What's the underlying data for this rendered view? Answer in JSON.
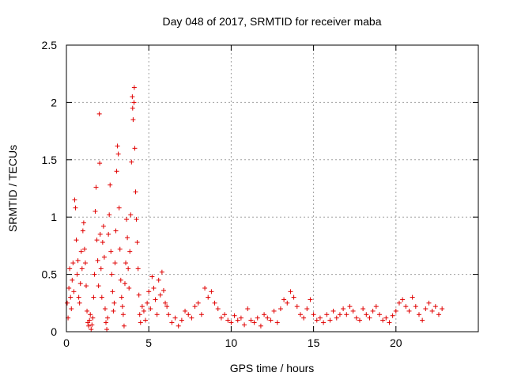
{
  "chart_data": {
    "type": "scatter",
    "title": "Day 048 of 2017, SRMTID for receiver maba",
    "xlabel": "GPS time / hours",
    "ylabel": "SRMTID / TECUs",
    "xlim": [
      0,
      25
    ],
    "ylim": [
      0,
      2.5
    ],
    "xticks": [
      0,
      5,
      10,
      15,
      20
    ],
    "xtick_labels": [
      "0",
      "5",
      "10",
      "15",
      "20"
    ],
    "yticks": [
      0,
      0.5,
      1,
      1.5,
      2,
      2.5
    ],
    "ytick_labels": [
      "0",
      "0.5",
      "1",
      "1.5",
      "2",
      "2.5"
    ],
    "grid": true,
    "marker": "+",
    "series_color": "#e00000",
    "series": [
      {
        "name": "SRMTID",
        "points": [
          [
            0.05,
            0.25
          ],
          [
            0.1,
            0.12
          ],
          [
            0.15,
            0.38
          ],
          [
            0.2,
            0.55
          ],
          [
            0.25,
            0.3
          ],
          [
            0.3,
            0.2
          ],
          [
            0.35,
            0.45
          ],
          [
            0.4,
            0.6
          ],
          [
            0.45,
            0.35
          ],
          [
            0.5,
            1.15
          ],
          [
            0.55,
            1.08
          ],
          [
            0.6,
            0.8
          ],
          [
            0.65,
            0.5
          ],
          [
            0.7,
            0.62
          ],
          [
            0.75,
            0.3
          ],
          [
            0.8,
            0.25
          ],
          [
            0.85,
            0.42
          ],
          [
            0.9,
            0.7
          ],
          [
            0.95,
            0.55
          ],
          [
            1.0,
            0.88
          ],
          [
            1.05,
            0.95
          ],
          [
            1.1,
            0.72
          ],
          [
            1.15,
            0.6
          ],
          [
            1.2,
            0.4
          ],
          [
            1.25,
            0.18
          ],
          [
            1.3,
            0.08
          ],
          [
            1.35,
            0.05
          ],
          [
            1.4,
            0.1
          ],
          [
            1.45,
            0.15
          ],
          [
            1.5,
            0.02
          ],
          [
            1.55,
            0.06
          ],
          [
            1.6,
            0.12
          ],
          [
            1.65,
            0.3
          ],
          [
            1.7,
            0.5
          ],
          [
            1.75,
            1.05
          ],
          [
            1.8,
            1.26
          ],
          [
            1.85,
            0.8
          ],
          [
            1.9,
            0.62
          ],
          [
            1.95,
            0.4
          ],
          [
            2.0,
            1.9
          ],
          [
            2.02,
            1.47
          ],
          [
            2.05,
            0.85
          ],
          [
            2.1,
            0.55
          ],
          [
            2.15,
            0.3
          ],
          [
            2.2,
            0.78
          ],
          [
            2.25,
            0.92
          ],
          [
            2.3,
            0.65
          ],
          [
            2.35,
            0.2
          ],
          [
            2.4,
            0.08
          ],
          [
            2.45,
            0.02
          ],
          [
            2.5,
            0.12
          ],
          [
            2.55,
            0.85
          ],
          [
            2.6,
            1.02
          ],
          [
            2.65,
            1.28
          ],
          [
            2.7,
            0.7
          ],
          [
            2.75,
            0.5
          ],
          [
            2.8,
            0.35
          ],
          [
            2.85,
            0.18
          ],
          [
            2.9,
            0.25
          ],
          [
            2.95,
            0.6
          ],
          [
            3.0,
            0.88
          ],
          [
            3.05,
            1.4
          ],
          [
            3.1,
            1.62
          ],
          [
            3.15,
            1.55
          ],
          [
            3.2,
            1.08
          ],
          [
            3.25,
            0.72
          ],
          [
            3.3,
            0.45
          ],
          [
            3.35,
            0.3
          ],
          [
            3.4,
            0.22
          ],
          [
            3.45,
            0.15
          ],
          [
            3.5,
            0.05
          ],
          [
            3.55,
            0.42
          ],
          [
            3.6,
            0.6
          ],
          [
            3.65,
            0.98
          ],
          [
            3.7,
            0.82
          ],
          [
            3.75,
            0.55
          ],
          [
            3.8,
            0.38
          ],
          [
            3.85,
            0.7
          ],
          [
            3.9,
            1.02
          ],
          [
            3.95,
            1.48
          ],
          [
            4.0,
            2.05
          ],
          [
            4.02,
            1.95
          ],
          [
            4.05,
            1.85
          ],
          [
            4.1,
            2.0
          ],
          [
            4.12,
            2.13
          ],
          [
            4.15,
            1.6
          ],
          [
            4.2,
            1.22
          ],
          [
            4.25,
            0.98
          ],
          [
            4.3,
            0.78
          ],
          [
            4.35,
            0.55
          ],
          [
            4.4,
            0.32
          ],
          [
            4.45,
            0.15
          ],
          [
            4.5,
            0.08
          ],
          [
            4.6,
            0.22
          ],
          [
            4.7,
            0.18
          ],
          [
            4.8,
            0.1
          ],
          [
            4.9,
            0.25
          ],
          [
            5.0,
            0.35
          ],
          [
            5.1,
            0.2
          ],
          [
            5.2,
            0.48
          ],
          [
            5.3,
            0.38
          ],
          [
            5.4,
            0.28
          ],
          [
            5.5,
            0.15
          ],
          [
            5.6,
            0.45
          ],
          [
            5.7,
            0.32
          ],
          [
            5.8,
            0.52
          ],
          [
            5.9,
            0.36
          ],
          [
            6.0,
            0.25
          ],
          [
            6.1,
            0.22
          ],
          [
            6.2,
            0.15
          ],
          [
            6.4,
            0.08
          ],
          [
            6.6,
            0.12
          ],
          [
            6.8,
            0.05
          ],
          [
            7.0,
            0.1
          ],
          [
            7.2,
            0.18
          ],
          [
            7.4,
            0.15
          ],
          [
            7.6,
            0.12
          ],
          [
            7.8,
            0.22
          ],
          [
            8.0,
            0.25
          ],
          [
            8.2,
            0.15
          ],
          [
            8.4,
            0.38
          ],
          [
            8.6,
            0.3
          ],
          [
            8.8,
            0.35
          ],
          [
            9.0,
            0.25
          ],
          [
            9.2,
            0.2
          ],
          [
            9.4,
            0.12
          ],
          [
            9.6,
            0.15
          ],
          [
            9.8,
            0.1
          ],
          [
            10.0,
            0.08
          ],
          [
            10.2,
            0.14
          ],
          [
            10.4,
            0.1
          ],
          [
            10.6,
            0.12
          ],
          [
            10.8,
            0.06
          ],
          [
            11.0,
            0.2
          ],
          [
            11.2,
            0.1
          ],
          [
            11.4,
            0.08
          ],
          [
            11.6,
            0.12
          ],
          [
            11.8,
            0.05
          ],
          [
            12.0,
            0.15
          ],
          [
            12.2,
            0.12
          ],
          [
            12.4,
            0.1
          ],
          [
            12.6,
            0.18
          ],
          [
            12.8,
            0.08
          ],
          [
            13.0,
            0.2
          ],
          [
            13.2,
            0.28
          ],
          [
            13.4,
            0.25
          ],
          [
            13.6,
            0.35
          ],
          [
            13.8,
            0.3
          ],
          [
            14.0,
            0.22
          ],
          [
            14.2,
            0.15
          ],
          [
            14.4,
            0.12
          ],
          [
            14.6,
            0.2
          ],
          [
            14.8,
            0.28
          ],
          [
            15.0,
            0.15
          ],
          [
            15.2,
            0.1
          ],
          [
            15.4,
            0.12
          ],
          [
            15.6,
            0.08
          ],
          [
            15.8,
            0.15
          ],
          [
            16.0,
            0.1
          ],
          [
            16.2,
            0.18
          ],
          [
            16.4,
            0.12
          ],
          [
            16.6,
            0.15
          ],
          [
            16.8,
            0.2
          ],
          [
            17.0,
            0.15
          ],
          [
            17.2,
            0.22
          ],
          [
            17.4,
            0.18
          ],
          [
            17.6,
            0.12
          ],
          [
            17.8,
            0.1
          ],
          [
            18.0,
            0.2
          ],
          [
            18.2,
            0.15
          ],
          [
            18.4,
            0.12
          ],
          [
            18.6,
            0.18
          ],
          [
            18.8,
            0.22
          ],
          [
            19.0,
            0.15
          ],
          [
            19.2,
            0.1
          ],
          [
            19.4,
            0.12
          ],
          [
            19.6,
            0.08
          ],
          [
            19.8,
            0.14
          ],
          [
            20.0,
            0.18
          ],
          [
            20.2,
            0.25
          ],
          [
            20.4,
            0.28
          ],
          [
            20.6,
            0.22
          ],
          [
            20.8,
            0.18
          ],
          [
            21.0,
            0.3
          ],
          [
            21.2,
            0.22
          ],
          [
            21.4,
            0.15
          ],
          [
            21.6,
            0.1
          ],
          [
            21.8,
            0.2
          ],
          [
            22.0,
            0.25
          ],
          [
            22.2,
            0.18
          ],
          [
            22.4,
            0.22
          ],
          [
            22.6,
            0.15
          ],
          [
            22.8,
            0.2
          ]
        ]
      }
    ]
  }
}
